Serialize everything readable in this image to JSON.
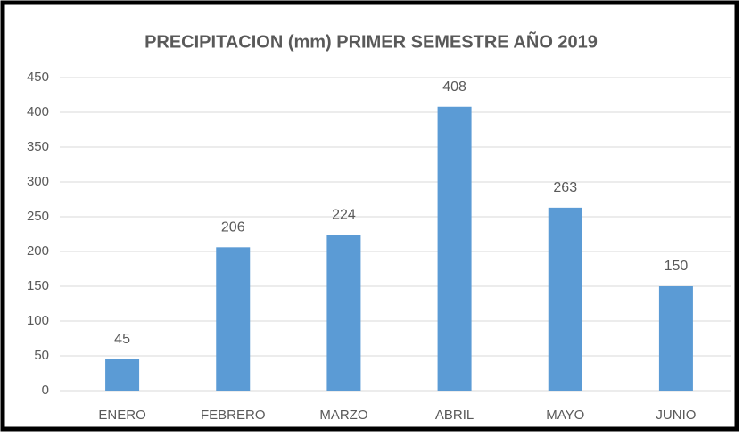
{
  "chart_data": {
    "type": "bar",
    "title": "PRECIPITACION (mm) PRIMER SEMESTRE AÑO 2019",
    "categories": [
      "ENERO",
      "FEBRERO",
      "MARZO",
      "ABRIL",
      "MAYO",
      "JUNIO"
    ],
    "values": [
      45,
      206,
      224,
      408,
      263,
      150
    ],
    "color": "#5b9bd5",
    "ylim": [
      0,
      450
    ],
    "yticks": [
      0,
      50,
      100,
      150,
      200,
      250,
      300,
      350,
      400,
      450
    ],
    "grid": true
  }
}
